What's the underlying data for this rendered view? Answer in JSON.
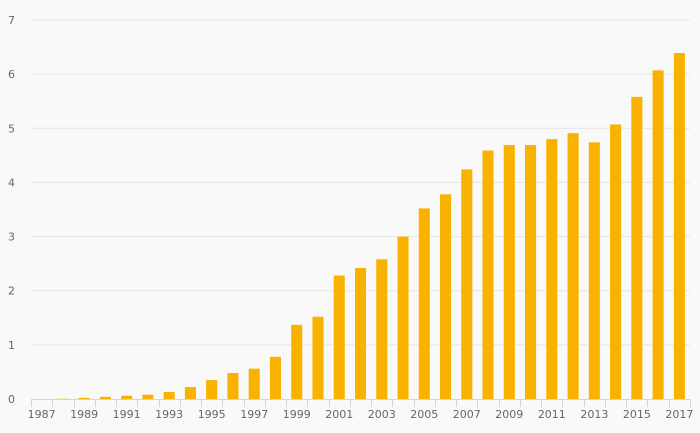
{
  "chart_data": {
    "type": "bar",
    "title": "",
    "xlabel": "",
    "ylabel": "",
    "ylim": [
      0,
      7
    ],
    "yticks": [
      0,
      1,
      2,
      3,
      4,
      5,
      6,
      7
    ],
    "grid": true,
    "legend": "none",
    "bar_color": "#f9b200",
    "categories": [
      "1987",
      "1988",
      "1989",
      "1990",
      "1991",
      "1992",
      "1993",
      "1994",
      "1995",
      "1996",
      "1997",
      "1998",
      "1999",
      "2000",
      "2001",
      "2002",
      "2003",
      "2004",
      "2005",
      "2006",
      "2007",
      "2008",
      "2009",
      "2010",
      "2011",
      "2012",
      "2013",
      "2014",
      "2015",
      "2016",
      "2017"
    ],
    "x_tick_labels": [
      "1987",
      "1989",
      "1991",
      "1993",
      "1995",
      "1997",
      "1999",
      "2001",
      "2003",
      "2005",
      "2007",
      "2009",
      "2011",
      "2013",
      "2015",
      "2017"
    ],
    "values": [
      0,
      0.005,
      0.02,
      0.04,
      0.06,
      0.08,
      0.13,
      0.22,
      0.35,
      0.48,
      0.56,
      0.78,
      1.37,
      1.52,
      2.28,
      2.42,
      2.58,
      3.0,
      3.52,
      3.78,
      4.24,
      4.59,
      4.69,
      4.69,
      4.8,
      4.91,
      4.74,
      5.07,
      5.58,
      6.07,
      6.39
    ]
  }
}
